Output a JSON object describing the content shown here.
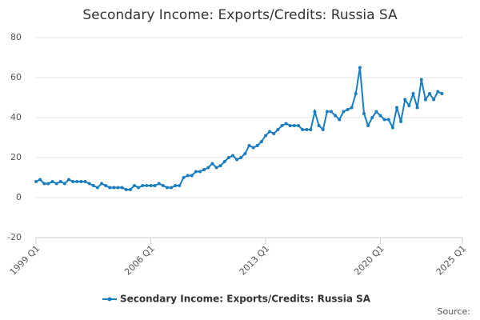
{
  "chart_data": {
    "type": "line",
    "title": "Secondary Income: Exports/Credits: Russia SA",
    "source": "Source:",
    "x": [
      1999,
      1999.25,
      1999.5,
      1999.75,
      2000,
      2000.25,
      2000.5,
      2000.75,
      2001,
      2001.25,
      2001.5,
      2001.75,
      2002,
      2002.25,
      2002.5,
      2002.75,
      2003,
      2003.25,
      2003.5,
      2003.75,
      2004,
      2004.25,
      2004.5,
      2004.75,
      2005,
      2005.25,
      2005.5,
      2005.75,
      2006,
      2006.25,
      2006.5,
      2006.75,
      2007,
      2007.25,
      2007.5,
      2007.75,
      2008,
      2008.25,
      2008.5,
      2008.75,
      2009,
      2009.25,
      2009.5,
      2009.75,
      2010,
      2010.25,
      2010.5,
      2010.75,
      2011,
      2011.25,
      2011.5,
      2011.75,
      2012,
      2012.25,
      2012.5,
      2012.75,
      2013,
      2013.25,
      2013.5,
      2013.75,
      2014,
      2014.25,
      2014.5,
      2014.75,
      2015,
      2015.25,
      2015.5,
      2015.75,
      2016,
      2016.25,
      2016.5,
      2016.75,
      2017,
      2017.25,
      2017.5,
      2017.75,
      2018,
      2018.25,
      2018.5,
      2018.75,
      2019,
      2019.25,
      2019.5,
      2019.75,
      2020,
      2020.25,
      2020.5,
      2020.75,
      2021,
      2021.25,
      2021.5,
      2021.75,
      2022,
      2022.25,
      2022.5,
      2022.75,
      2023,
      2023.25,
      2023.5,
      2023.75
    ],
    "series": [
      {
        "name": "Secondary Income: Exports/Credits: Russia SA",
        "color": "#1a7dbf",
        "values": [
          8,
          9,
          7,
          7,
          8,
          7,
          8,
          7,
          9,
          8,
          8,
          8,
          8,
          7,
          6,
          5,
          7,
          6,
          5,
          5,
          5,
          5,
          4,
          4,
          6,
          5,
          6,
          6,
          6,
          6,
          7,
          6,
          5,
          5,
          6,
          6,
          10,
          11,
          11,
          13,
          13,
          14,
          15,
          17,
          15,
          16,
          18,
          20,
          21,
          19,
          20,
          22,
          26,
          25,
          26,
          28,
          31,
          33,
          32,
          34,
          36,
          37,
          36,
          36,
          36,
          34,
          34,
          34,
          43,
          36,
          34,
          43,
          43,
          41,
          39,
          43,
          44,
          45,
          52,
          65,
          42,
          36,
          40,
          43,
          41,
          39,
          39,
          35,
          45,
          38,
          49,
          46,
          52,
          45,
          59,
          49,
          52,
          49,
          53,
          52
        ]
      }
    ],
    "xlim": [
      1999,
      2025
    ],
    "xticks": [
      {
        "value": 1999,
        "label": "1999 Q1"
      },
      {
        "value": 2006,
        "label": "2006 Q1"
      },
      {
        "value": 2013,
        "label": "2013 Q1"
      },
      {
        "value": 2020,
        "label": "2020 Q1"
      },
      {
        "value": 2025,
        "label": "2025 Q1"
      }
    ],
    "ylim": [
      -20,
      80
    ],
    "yticks": [
      -20,
      0,
      20,
      40,
      60,
      80
    ],
    "grid": true
  }
}
